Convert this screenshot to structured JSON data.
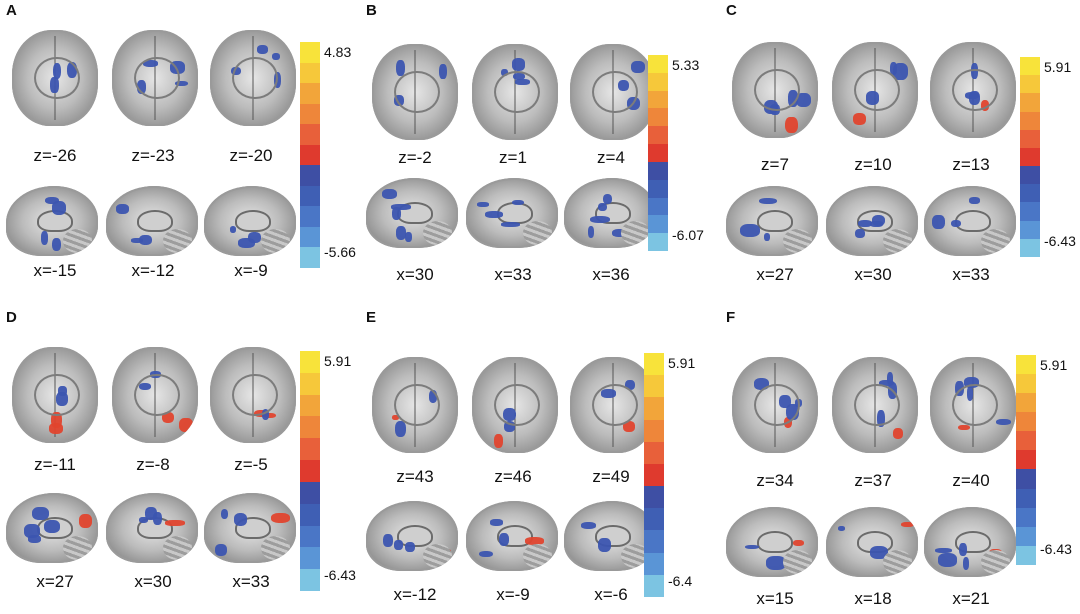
{
  "colors": {
    "colormap": [
      "#f8e33a",
      "#f6c83a",
      "#f2a53a",
      "#ee863a",
      "#e8603a",
      "#df3a2e",
      "#3e4fa4",
      "#3f5fb4",
      "#4a76c6",
      "#5a95d6",
      "#7cc4e2"
    ],
    "activation_red": "#e0442e",
    "activation_blue": "#3c55b0"
  },
  "panels": [
    {
      "letter": "A",
      "row1": [
        "z=-26",
        "z=-23",
        "z=-20"
      ],
      "row2": [
        "x=-15",
        "x=-12",
        "x=-9"
      ],
      "colorbar_max": "4.83",
      "colorbar_min": "-5.66"
    },
    {
      "letter": "B",
      "row1": [
        "z=-2",
        "z=1",
        "z=4"
      ],
      "row2": [
        "x=30",
        "x=33",
        "x=36"
      ],
      "colorbar_max": "5.33",
      "colorbar_min": "-6.07"
    },
    {
      "letter": "C",
      "row1": [
        "z=7",
        "z=10",
        "z=13"
      ],
      "row2": [
        "x=27",
        "x=30",
        "x=33"
      ],
      "colorbar_max": "5.91",
      "colorbar_min": "-6.43"
    },
    {
      "letter": "D",
      "row1": [
        "z=-11",
        "z=-8",
        "z=-5"
      ],
      "row2": [
        "x=27",
        "x=30",
        "x=33"
      ],
      "colorbar_max": "5.91",
      "colorbar_min": "-6.43"
    },
    {
      "letter": "E",
      "row1": [
        "z=43",
        "z=46",
        "z=49"
      ],
      "row2": [
        "x=-12",
        "x=-9",
        "x=-6"
      ],
      "colorbar_max": "5.91",
      "colorbar_min": "-6.4"
    },
    {
      "letter": "F",
      "row1": [
        "z=34",
        "z=37",
        "z=40"
      ],
      "row2": [
        "x=15",
        "x=18",
        "x=21"
      ],
      "colorbar_max": "5.91",
      "colorbar_min": "-6.43"
    }
  ]
}
